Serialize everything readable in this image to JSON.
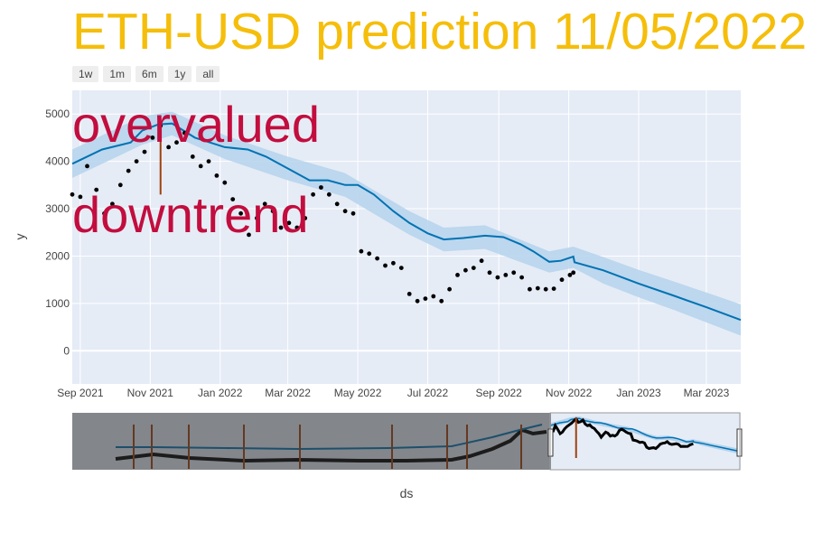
{
  "title": "ETH-USD prediction 11/05/2022",
  "range_selector": [
    "1w",
    "1m",
    "6m",
    "1y",
    "all"
  ],
  "annotations": [
    "overvalued",
    "downtrend"
  ],
  "colors": {
    "title": "#f5be0b",
    "annotation": "#c20d3e",
    "forecast_line": "#0072b2",
    "band": "#b5d3ec",
    "actual": "#000000",
    "changepoint": "#a0400c",
    "plot_bg": "#e5ecf6"
  },
  "chart_data": {
    "type": "line",
    "xlabel": "ds",
    "ylabel": "y",
    "x_ticks": [
      "Sep 2021",
      "Nov 2021",
      "Jan 2022",
      "Mar 2022",
      "May 2022",
      "Jul 2022",
      "Sep 2022",
      "Nov 2022",
      "Jan 2023",
      "Mar 2023"
    ],
    "y_ticks": [
      0,
      1000,
      2000,
      3000,
      4000,
      5000
    ],
    "xlim": [
      "2021-08-25",
      "2023-03-31"
    ],
    "ylim": [
      -700,
      5500
    ],
    "grid": true,
    "series": [
      {
        "role": "forecast",
        "x": [
          "2021-08-25",
          "2021-09-20",
          "2021-10-15",
          "2021-10-25",
          "2021-11-08",
          "2021-11-20",
          "2021-12-10",
          "2022-01-05",
          "2022-01-25",
          "2022-02-10",
          "2022-03-01",
          "2022-03-20",
          "2022-04-05",
          "2022-04-20",
          "2022-05-01",
          "2022-05-15",
          "2022-06-01",
          "2022-06-15",
          "2022-07-01",
          "2022-07-15",
          "2022-08-01",
          "2022-08-20",
          "2022-09-05",
          "2022-09-20",
          "2022-10-01",
          "2022-10-15",
          "2022-10-25",
          "2022-11-05",
          "2022-11-06",
          "2022-12-01",
          "2023-01-01",
          "2023-02-01",
          "2023-03-01",
          "2023-03-31"
        ],
        "values": [
          3950,
          4250,
          4400,
          4650,
          4780,
          4800,
          4500,
          4300,
          4250,
          4100,
          3850,
          3600,
          3600,
          3500,
          3500,
          3300,
          2950,
          2700,
          2480,
          2350,
          2380,
          2430,
          2400,
          2250,
          2100,
          1880,
          1900,
          1990,
          1870,
          1700,
          1420,
          1160,
          920,
          650
        ]
      },
      {
        "role": "uncertainty_band",
        "x": [
          "2021-08-25",
          "2021-10-25",
          "2021-11-20",
          "2022-01-05",
          "2022-03-01",
          "2022-04-20",
          "2022-06-15",
          "2022-07-15",
          "2022-08-20",
          "2022-10-15",
          "2022-11-05",
          "2022-12-01",
          "2023-01-01",
          "2023-02-01",
          "2023-03-01",
          "2023-03-31"
        ],
        "upper": [
          4250,
          4950,
          5050,
          4550,
          4100,
          3750,
          2950,
          2600,
          2650,
          2100,
          2200,
          1980,
          1710,
          1460,
          1230,
          980
        ],
        "lower": [
          3650,
          4350,
          4550,
          4050,
          3600,
          3250,
          2450,
          2100,
          2150,
          1650,
          1750,
          1420,
          1130,
          860,
          600,
          320
        ]
      },
      {
        "role": "actual",
        "x": [
          "2021-08-25",
          "2021-09-01",
          "2021-09-07",
          "2021-09-15",
          "2021-09-22",
          "2021-09-29",
          "2021-10-06",
          "2021-10-13",
          "2021-10-20",
          "2021-10-27",
          "2021-11-03",
          "2021-11-10",
          "2021-11-17",
          "2021-11-24",
          "2021-12-01",
          "2021-12-08",
          "2021-12-15",
          "2021-12-22",
          "2021-12-29",
          "2022-01-05",
          "2022-01-12",
          "2022-01-19",
          "2022-01-26",
          "2022-02-02",
          "2022-02-09",
          "2022-02-16",
          "2022-02-23",
          "2022-03-02",
          "2022-03-09",
          "2022-03-16",
          "2022-03-23",
          "2022-03-30",
          "2022-04-06",
          "2022-04-13",
          "2022-04-20",
          "2022-04-27",
          "2022-05-04",
          "2022-05-11",
          "2022-05-18",
          "2022-05-25",
          "2022-06-01",
          "2022-06-08",
          "2022-06-15",
          "2022-06-22",
          "2022-06-29",
          "2022-07-06",
          "2022-07-13",
          "2022-07-20",
          "2022-07-27",
          "2022-08-03",
          "2022-08-10",
          "2022-08-17",
          "2022-08-24",
          "2022-08-31",
          "2022-09-07",
          "2022-09-14",
          "2022-09-21",
          "2022-09-28",
          "2022-10-05",
          "2022-10-12",
          "2022-10-19",
          "2022-10-26",
          "2022-11-02",
          "2022-11-05"
        ],
        "values": [
          3300,
          3250,
          3900,
          3400,
          2900,
          3100,
          3500,
          3800,
          4000,
          4200,
          4500,
          4750,
          4300,
          4400,
          4600,
          4100,
          3900,
          4000,
          3700,
          3550,
          3200,
          2900,
          2450,
          2800,
          3100,
          2950,
          2600,
          2700,
          2600,
          2800,
          3300,
          3450,
          3300,
          3100,
          2950,
          2900,
          2100,
          2050,
          1950,
          1800,
          1850,
          1750,
          1200,
          1050,
          1100,
          1150,
          1050,
          1300,
          1600,
          1700,
          1750,
          1900,
          1650,
          1550,
          1600,
          1650,
          1550,
          1300,
          1320,
          1300,
          1310,
          1500,
          1600,
          1650
        ]
      }
    ],
    "changepoints": [
      "2021-11-10"
    ],
    "navigator": {
      "visible_window": [
        "2021-08-25",
        "2023-03-31"
      ],
      "history_changepoints": 10
    }
  }
}
